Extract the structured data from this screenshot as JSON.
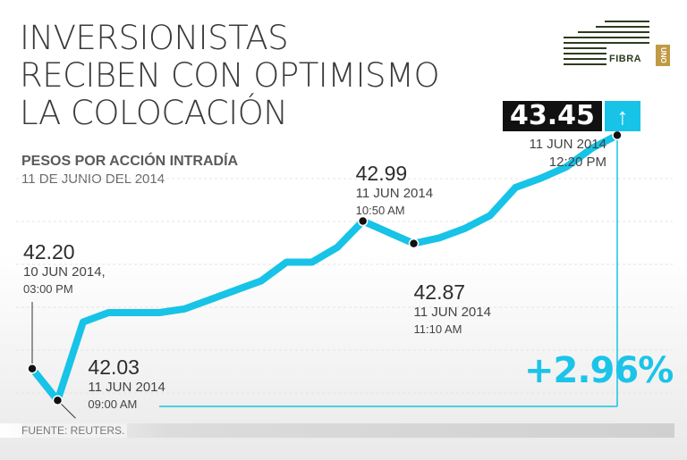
{
  "header": {
    "title_lines": [
      "INVERSIONISTAS",
      "RECIBEN CON OPTIMISMO",
      "LA COLOCACIÓN"
    ],
    "subtitle": "PESOS POR ACCIÓN INTRADÍA",
    "date": "11 DE JUNIO DEL 2014"
  },
  "logo": {
    "text": "FIBRA",
    "box_text": "UNO",
    "icon": "fibra-uno-logo"
  },
  "highlight": {
    "last_value": "43.45",
    "arrow_icon": "up-arrow-icon",
    "change": "+2.96%"
  },
  "source": "FUENTE: REUTERS.",
  "colors": {
    "line": "#17c3e6",
    "accent": "#1bc4e8",
    "text": "#3a3a3a",
    "box": "#111111"
  },
  "chart_data": {
    "type": "line",
    "title": "PESOS POR ACCIÓN INTRADÍA",
    "subtitle": "11 DE JUNIO DEL 2014",
    "series": [
      {
        "values": [
          42.2,
          42.03,
          42.45,
          42.5,
          42.5,
          42.5,
          42.52,
          42.57,
          42.62,
          42.67,
          42.77,
          42.77,
          42.85,
          42.99,
          42.93,
          42.87,
          42.9,
          42.95,
          43.02,
          43.17,
          43.22,
          43.28,
          43.38,
          43.45
        ]
      }
    ],
    "ylim": [
      41.95,
      43.6
    ],
    "annotations": [
      {
        "index": 0,
        "value": "42.20",
        "date": "10 JUN 2014,",
        "time": "03:00 PM"
      },
      {
        "index": 1,
        "value": "42.03",
        "date": "11 JUN 2014",
        "time": "09:00 AM"
      },
      {
        "index": 13,
        "value": "42.99",
        "date": "11 JUN 2014",
        "time": "10:50 AM"
      },
      {
        "index": 15,
        "value": "42.87",
        "date": "11 JUN 2014",
        "time": "11:10 AM"
      },
      {
        "index": 23,
        "value": "43.45",
        "date": "11 JUN 2014",
        "time": "12:20 PM"
      }
    ],
    "grid": true,
    "legend": "none"
  }
}
